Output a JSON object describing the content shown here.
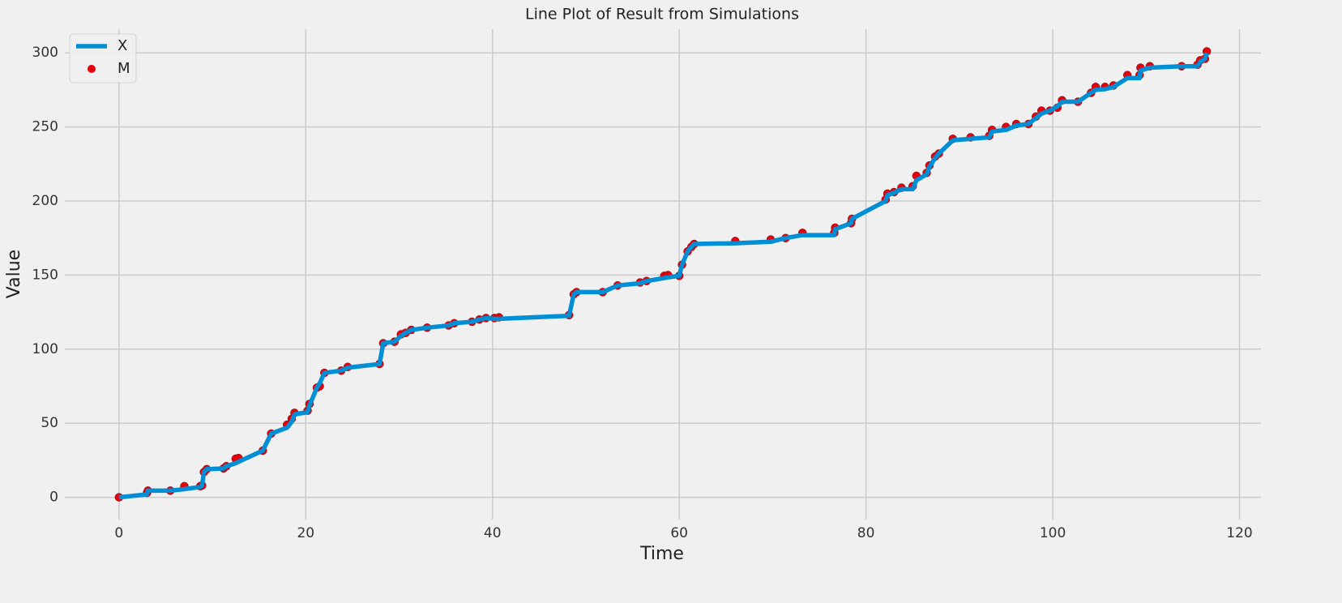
{
  "chart_data": {
    "type": "line",
    "title": "Line Plot of Result from Simulations",
    "x_label": "Time",
    "y_label": "Value",
    "xlim": [
      -5.8,
      122.3
    ],
    "ylim": [
      -15,
      316
    ],
    "xticks": [
      0,
      20,
      40,
      60,
      80,
      100,
      120
    ],
    "yticks": [
      0,
      50,
      100,
      150,
      200,
      250,
      300
    ],
    "grid": true,
    "legend": "upper-left",
    "series": [
      {
        "name": "X",
        "kind": "line",
        "color": "#008fd5",
        "x": [
          0,
          3,
          3.1,
          5.5,
          7,
          8.7,
          8.9,
          9.1,
          9.4,
          11.2,
          11.5,
          12.5,
          12.8,
          15.4,
          16.3,
          18,
          18.5,
          18.8,
          20.2,
          20.4,
          21.2,
          21.5,
          22,
          23.8,
          24.5,
          27.9,
          28.3,
          29.5,
          30.2,
          30.7,
          31.3,
          33,
          35.3,
          35.9,
          37.8,
          38.6,
          39.3,
          40.2,
          40.7,
          48.2,
          48.7,
          49,
          51.8,
          53.4,
          55.8,
          56.5,
          58.4,
          58.8,
          60,
          60.3,
          60.9,
          61.3,
          61.6,
          66,
          69.8,
          71.4,
          73.2,
          76.6,
          76.7,
          78.4,
          78.5,
          82.1,
          82.3,
          83,
          83.8,
          85,
          85.4,
          86.5,
          86.8,
          87.4,
          87.8,
          89.3,
          91.2,
          93.2,
          93.5,
          95,
          96.1,
          97.4,
          98.2,
          98.8,
          99.7,
          100.5,
          101,
          102.7,
          104.1,
          104.6,
          105.6,
          106.5,
          108,
          109.3,
          109.4,
          110.4,
          113.8,
          115.5,
          115.8,
          116.3,
          116.5
        ],
        "values": [
          0,
          2,
          4.5,
          4.5,
          5.5,
          7,
          8,
          17,
          19,
          19.5,
          21,
          23,
          24,
          31.5,
          43,
          47,
          51,
          56,
          57.5,
          62,
          74,
          77,
          84,
          85.5,
          87.5,
          90,
          104,
          105,
          109,
          111,
          113,
          114.5,
          116,
          117.5,
          118.5,
          120,
          121,
          120.5,
          120.5,
          122.5,
          137,
          138.5,
          138.5,
          143,
          144.5,
          146,
          148,
          148.5,
          149.5,
          157,
          166,
          169,
          171,
          171.5,
          172.5,
          175,
          177,
          177,
          181,
          185,
          188,
          200,
          204,
          205.5,
          208,
          208,
          214,
          218,
          223,
          229,
          232,
          241,
          242,
          243,
          247,
          248,
          251,
          252,
          256,
          259,
          261,
          264,
          267,
          267,
          273,
          275,
          275.5,
          277,
          283,
          283,
          288,
          290,
          291,
          291,
          294,
          296,
          300
        ]
      },
      {
        "name": "M",
        "kind": "scatter",
        "color": "#e5000b",
        "x": [
          0,
          3,
          3.1,
          5.5,
          7,
          8.7,
          8.9,
          9.1,
          9.4,
          11.2,
          11.5,
          12.5,
          12.8,
          15.4,
          16.3,
          18,
          18.5,
          18.8,
          20.2,
          20.4,
          21.2,
          21.5,
          22,
          23.8,
          24.5,
          27.9,
          28.3,
          29.5,
          30.2,
          30.7,
          31.3,
          33,
          35.3,
          35.9,
          37.8,
          38.6,
          39.3,
          40.2,
          40.7,
          48.2,
          48.7,
          49,
          51.8,
          53.4,
          55.8,
          56.5,
          58.4,
          58.8,
          60,
          60.3,
          60.9,
          61.3,
          61.6,
          66,
          69.8,
          71.4,
          73.2,
          76.6,
          76.7,
          78.4,
          78.5,
          82.1,
          82.3,
          83,
          83.8,
          85,
          85.4,
          86.5,
          86.8,
          87.4,
          87.8,
          89.3,
          91.2,
          93.2,
          93.5,
          95,
          96.1,
          97.4,
          98.2,
          98.8,
          99.7,
          100.5,
          101,
          102.7,
          104.1,
          104.6,
          105.6,
          106.5,
          108,
          109.3,
          109.4,
          110.4,
          113.8,
          115.5,
          115.8,
          116.3,
          116.5
        ],
        "values": [
          0,
          3,
          4.5,
          4.5,
          7.5,
          7.5,
          8,
          17,
          19,
          19.5,
          21,
          26,
          26.5,
          31.5,
          43,
          49,
          53,
          57,
          58.5,
          63,
          74,
          75,
          84,
          85.5,
          88,
          90,
          104,
          105,
          110,
          111,
          113,
          114.5,
          116,
          117.5,
          118.5,
          120,
          121,
          121,
          121.5,
          123,
          137,
          138.5,
          138.5,
          143,
          145,
          146,
          149.5,
          150,
          149.5,
          157,
          166,
          169,
          171,
          173,
          174,
          175,
          178.5,
          178.5,
          182,
          185,
          188,
          201,
          205,
          206,
          209,
          210,
          217,
          219,
          224,
          230,
          232,
          242,
          243,
          244,
          248,
          250,
          252,
          252,
          257,
          261,
          261,
          263,
          268,
          267,
          273,
          277,
          277,
          278,
          285,
          285,
          290,
          291,
          291,
          292,
          295,
          296,
          301
        ]
      }
    ]
  }
}
